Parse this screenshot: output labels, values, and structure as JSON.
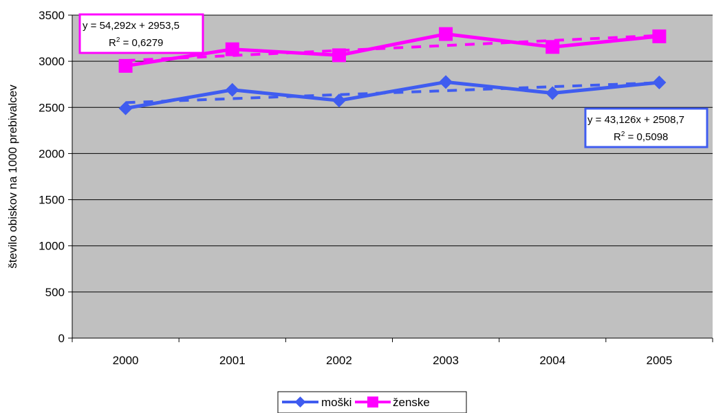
{
  "chart_data": {
    "type": "line",
    "categories": [
      "2000",
      "2001",
      "2002",
      "2003",
      "2004",
      "2005"
    ],
    "series": [
      {
        "name": "moški",
        "color": "#3f5cf0",
        "marker": "diamond",
        "values": [
          2490,
          2690,
          2575,
          2775,
          2655,
          2770
        ],
        "trendline": {
          "slope": 43.126,
          "intercept": 2508.7,
          "style": "dashed"
        },
        "equation_line1": "y = 43,126x + 2508,7",
        "r2_prefix": "R",
        "r2_sup": "2",
        "r2_value": " = 0,5098"
      },
      {
        "name": "ženske",
        "color": "#ff00ff",
        "marker": "square",
        "values": [
          2950,
          3130,
          3065,
          3295,
          3155,
          3270
        ],
        "trendline": {
          "slope": 54.292,
          "intercept": 2953.5,
          "style": "dashed"
        },
        "equation_line1": "y = 54,292x + 2953,5",
        "r2_prefix": "R",
        "r2_sup": "2",
        "r2_value": " = 0,6279"
      }
    ],
    "ylabel": "število obiskov na 1000 prebivalcev",
    "xlabel": "",
    "title": "",
    "ylim": [
      0,
      3500
    ],
    "yticks": [
      "0",
      "500",
      "1000",
      "1500",
      "2000",
      "2500",
      "3000",
      "3500"
    ],
    "plot_background": "#c0c0c0",
    "grid": true,
    "legend_position": "bottom"
  }
}
